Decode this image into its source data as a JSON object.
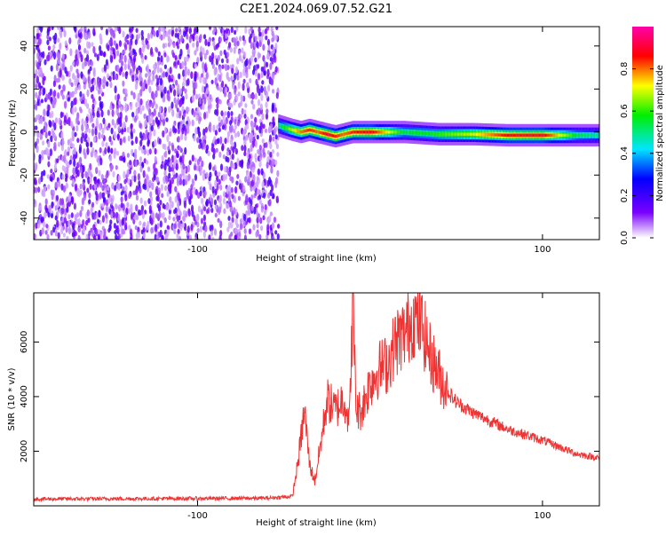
{
  "title": "C2E1.2024.069.07.52.G21",
  "chart_data": [
    {
      "type": "heatmap",
      "xlabel": "Height of straight line (km)",
      "ylabel": "Frequency (Hz)",
      "xlim": [
        -195,
        133
      ],
      "ylim": [
        -50,
        49
      ],
      "xticks": [
        -100,
        100
      ],
      "yticks": [
        -40,
        -20,
        0,
        20,
        40
      ],
      "colorbar": {
        "label": "Normalized spectral amplitude",
        "range": [
          0,
          1
        ],
        "ticks": [
          0.0,
          0.2,
          0.4,
          0.6,
          0.8
        ]
      },
      "noise_region_x": [
        -195,
        -53
      ],
      "signal_track": {
        "x": [
          -53,
          -45,
          -40,
          -35,
          -30,
          -25,
          -20,
          -15,
          -10,
          0,
          20,
          40,
          60,
          80,
          100,
          120,
          133
        ],
        "freq": [
          3,
          1,
          0,
          1,
          0,
          -1,
          -2,
          -1,
          0,
          0,
          0,
          -1,
          -1,
          -1.5,
          -1.5,
          -1.5,
          -1.5
        ],
        "peak_amplitude": [
          0.5,
          0.7,
          0.8,
          0.85,
          0.8,
          0.9,
          0.85,
          0.8,
          0.85,
          0.9,
          0.55,
          0.6,
          0.7,
          0.88,
          0.9,
          0.55,
          0.5
        ]
      }
    },
    {
      "type": "line",
      "xlabel": "Height of straight line (km)",
      "ylabel": "SNR (10 * v/v)",
      "xlim": [
        -195,
        133
      ],
      "ylim": [
        0,
        7800
      ],
      "xticks": [
        -100,
        100
      ],
      "yticks": [
        2000,
        4000,
        6000
      ],
      "color": "#ee3333",
      "series": [
        {
          "x": [
            -195,
            -150,
            -100,
            -60,
            -45,
            -42,
            -38,
            -35,
            -32,
            -28,
            -25,
            -20,
            -15,
            -12,
            -10,
            -8,
            -5,
            0,
            5,
            10,
            15,
            20,
            25,
            30,
            35,
            40,
            45,
            50,
            60,
            70,
            80,
            90,
            100,
            110,
            120,
            133
          ],
          "values": [
            250,
            260,
            270,
            280,
            350,
            1500,
            3500,
            1500,
            900,
            2500,
            3900,
            3500,
            4000,
            3000,
            7600,
            3500,
            3500,
            4500,
            5000,
            5200,
            6000,
            6300,
            6900,
            6600,
            5500,
            4800,
            4200,
            3800,
            3400,
            3100,
            2800,
            2600,
            2400,
            2150,
            1900,
            1750
          ]
        }
      ]
    }
  ]
}
